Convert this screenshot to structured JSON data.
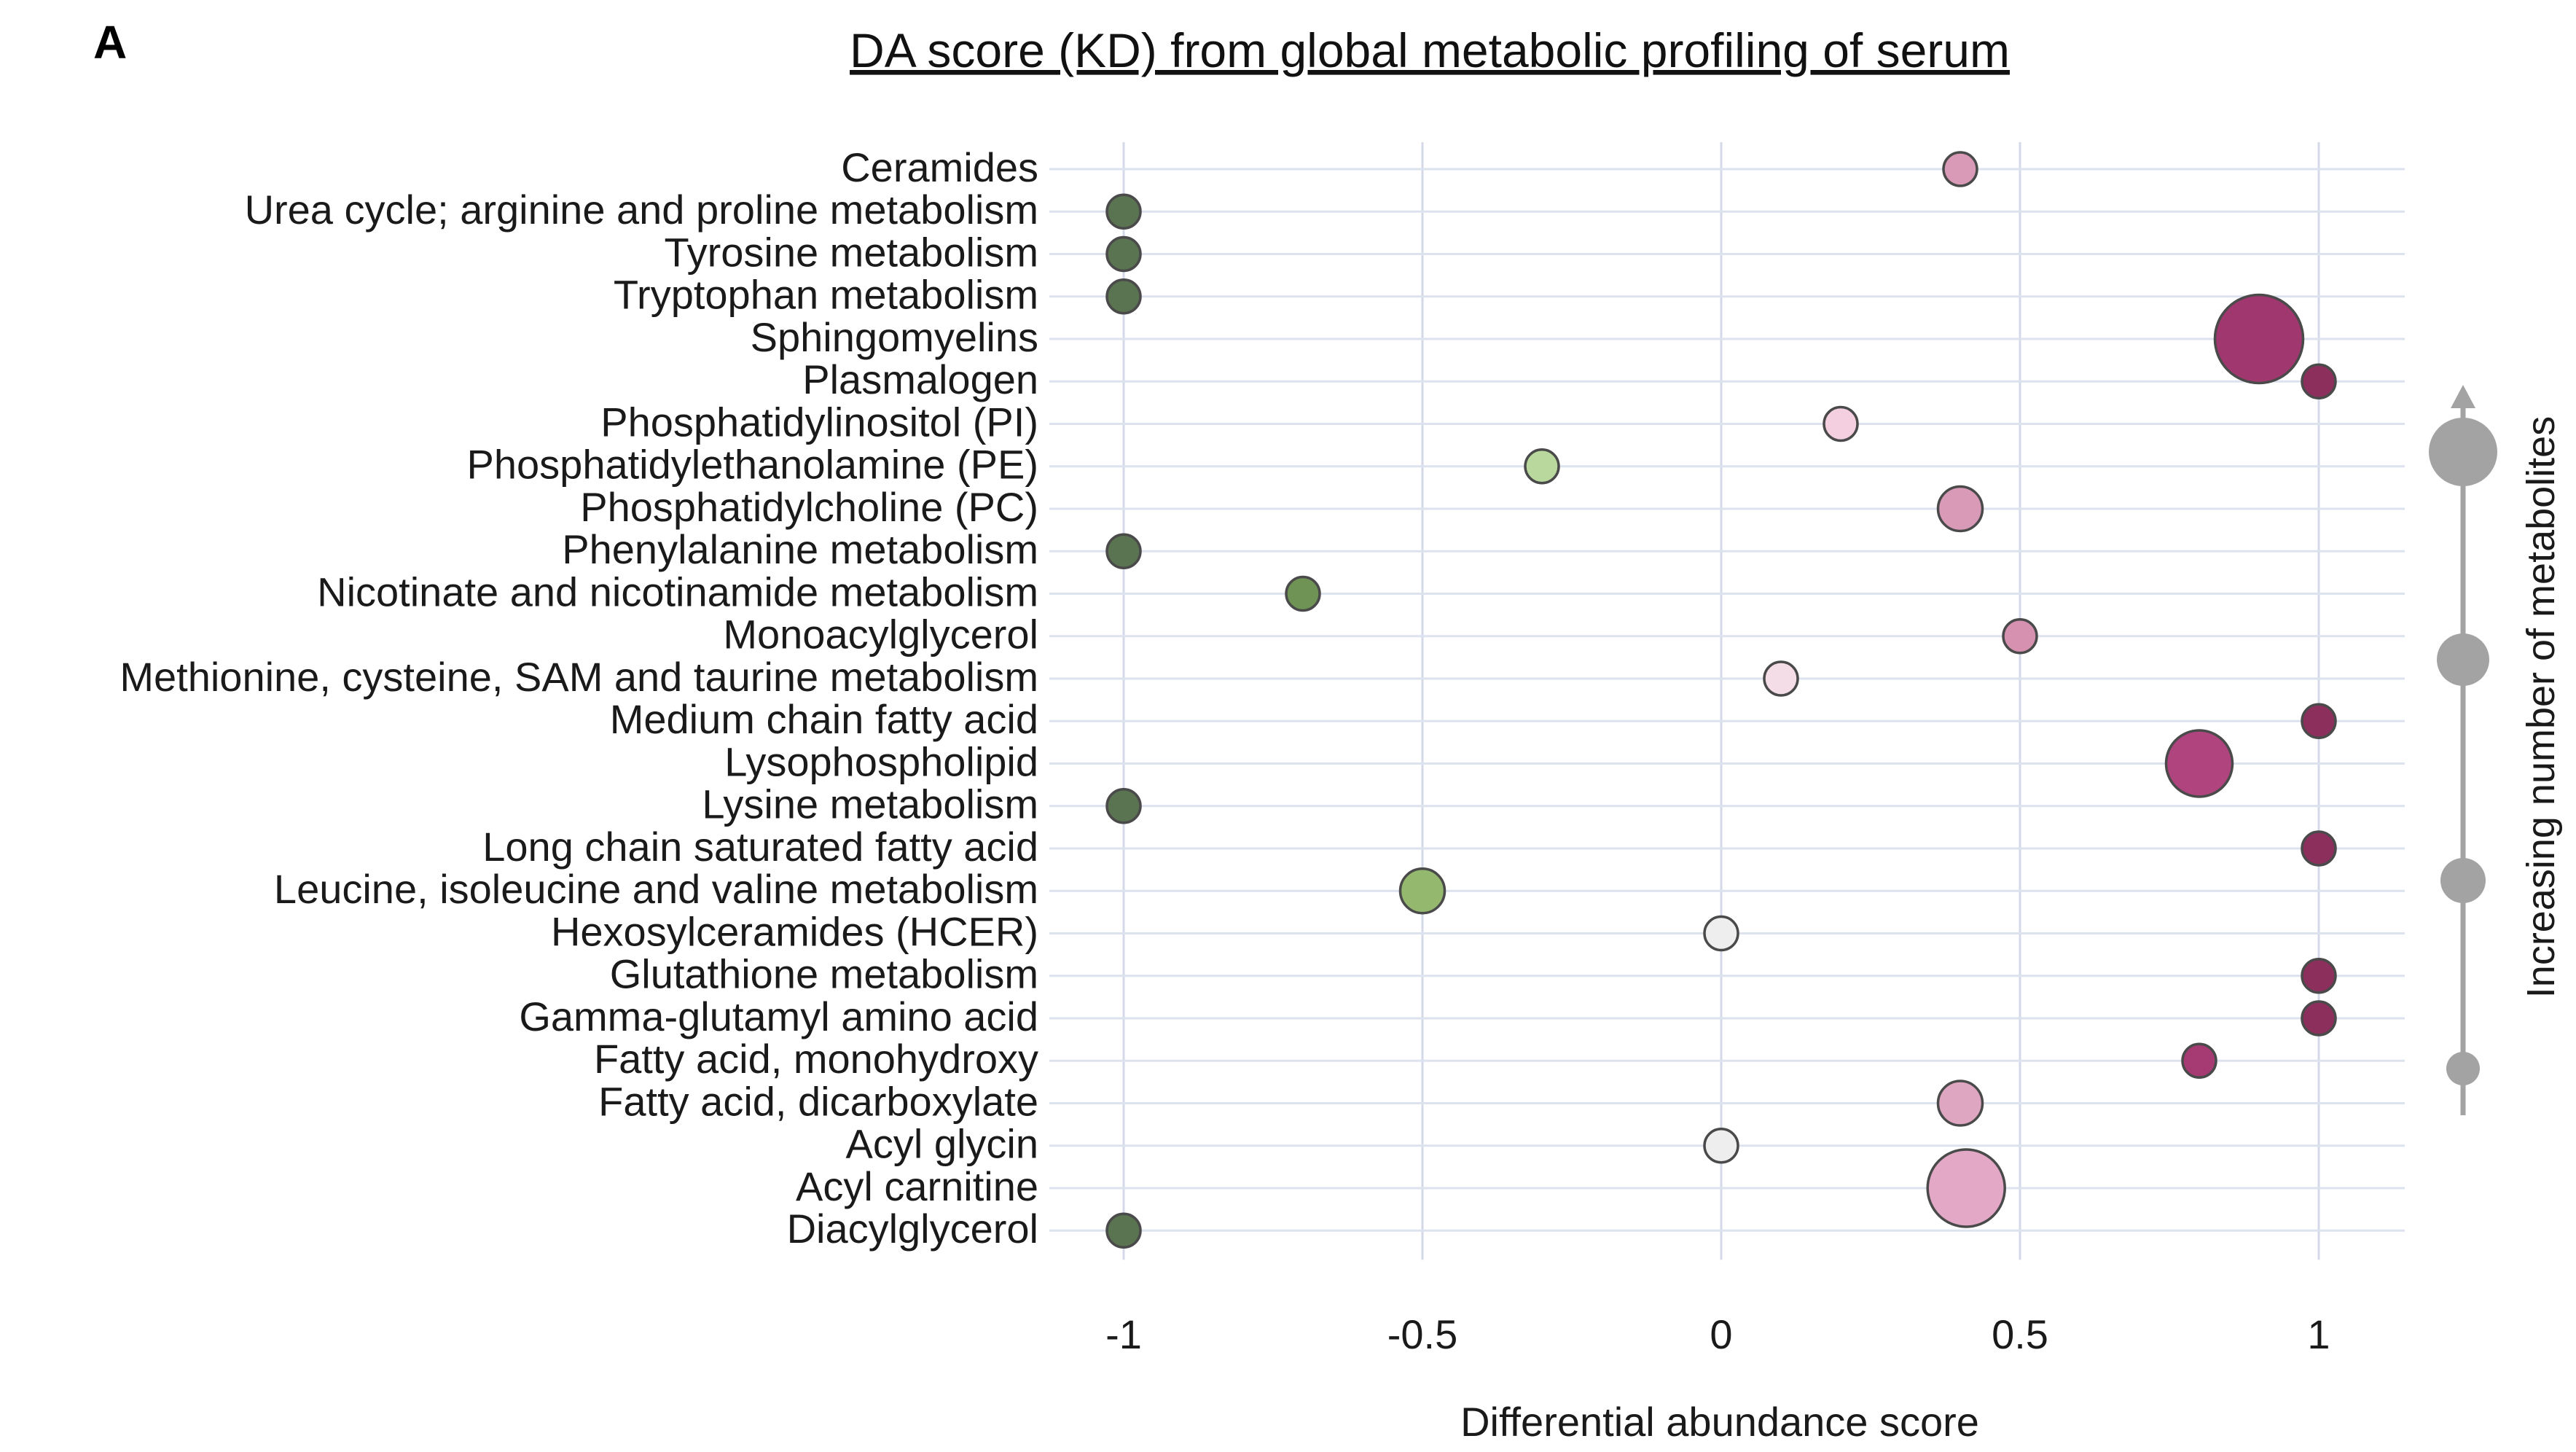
{
  "panel_label": "A",
  "chart_data": {
    "type": "scatter",
    "title": "DA score (KD) from global metabolic profiling of serum",
    "xlabel": "Differential abundance score",
    "ylabel": "",
    "xlim": [
      -1.2,
      1.12
    ],
    "xticks": [
      -1,
      -0.5,
      0,
      0.5,
      1
    ],
    "xtick_labels": [
      "-1",
      "-0.5",
      "0",
      "0.5",
      "1"
    ],
    "grid": true,
    "points": [
      {
        "label": "Ceramides",
        "x": 0.4,
        "n": 2,
        "color": "#d99ab7"
      },
      {
        "label": "Urea cycle; arginine and proline metabolism",
        "x": -1,
        "n": 2,
        "color": "#5a7350"
      },
      {
        "label": "Tyrosine metabolism",
        "x": -1,
        "n": 2,
        "color": "#5a7350"
      },
      {
        "label": "Tryptophan metabolism",
        "x": -1,
        "n": 2,
        "color": "#5a7350"
      },
      {
        "label": "Sphingomyelins",
        "x": 0.9,
        "n": 7,
        "color": "#a0376f"
      },
      {
        "label": "Plasmalogen",
        "x": 1,
        "n": 2,
        "color": "#8c2f5c"
      },
      {
        "label": "Phosphatidylinositol  (PI)",
        "x": 0.2,
        "n": 2,
        "color": "#f4cfe0"
      },
      {
        "label": "Phosphatidylethanolamine  (PE)",
        "x": -0.3,
        "n": 2,
        "color": "#b8d89e"
      },
      {
        "label": "Phosphatidylcholine  (PC)",
        "x": 0.4,
        "n": 3,
        "color": "#d99ab7"
      },
      {
        "label": "Phenylalanine  metabolism",
        "x": -1,
        "n": 2,
        "color": "#5a7350"
      },
      {
        "label": "Nicotinate and nicotinamide metabolism",
        "x": -0.7,
        "n": 2,
        "color": "#6f9255"
      },
      {
        "label": "Monoacylglycerol",
        "x": 0.5,
        "n": 2,
        "color": "#d690b0"
      },
      {
        "label": "Methionine,  cysteine,  SAM and taurine metabolism",
        "x": 0.1,
        "n": 2,
        "color": "#f5dde8"
      },
      {
        "label": "Medium  chain fatty acid",
        "x": 1,
        "n": 2,
        "color": "#8c2f5c"
      },
      {
        "label": "Lysophospholipid",
        "x": 0.8,
        "n": 5,
        "color": "#b0447e"
      },
      {
        "label": "Lysine  metabolism",
        "x": -1,
        "n": 2,
        "color": "#5a7350"
      },
      {
        "label": "Long chain saturated  fatty acid",
        "x": 1,
        "n": 2,
        "color": "#8c2f5c"
      },
      {
        "label": "Leucine,  isoleucine and valine  metabolism",
        "x": -0.5,
        "n": 3,
        "color": "#93b86e"
      },
      {
        "label": "Hexosylceramides  (HCER)",
        "x": 0,
        "n": 2,
        "color": "#eeeeee"
      },
      {
        "label": "Glutathione  metabolism",
        "x": 1,
        "n": 2,
        "color": "#8c2f5c"
      },
      {
        "label": "Gamma-glutamyl  amino acid",
        "x": 1,
        "n": 2,
        "color": "#8c2f5c"
      },
      {
        "label": "Fatty acid,  monohydroxy",
        "x": 0.8,
        "n": 2,
        "color": "#a63a72"
      },
      {
        "label": "Fatty acid,  dicarboxylate",
        "x": 0.4,
        "n": 3,
        "color": "#dfa6c1"
      },
      {
        "label": "Acyl glycin",
        "x": 0,
        "n": 2,
        "color": "#eeeeee"
      },
      {
        "label": "Acyl carnitine",
        "x": 0.41,
        "n": 6,
        "color": "#e2a8c6"
      },
      {
        "label": "Diacylglycerol",
        "x": -1,
        "n": 2,
        "color": "#5a7350"
      }
    ],
    "legend": {
      "title": "Increasing number of metabolites",
      "position": "right",
      "levels": [
        1,
        3,
        5,
        8
      ]
    }
  }
}
